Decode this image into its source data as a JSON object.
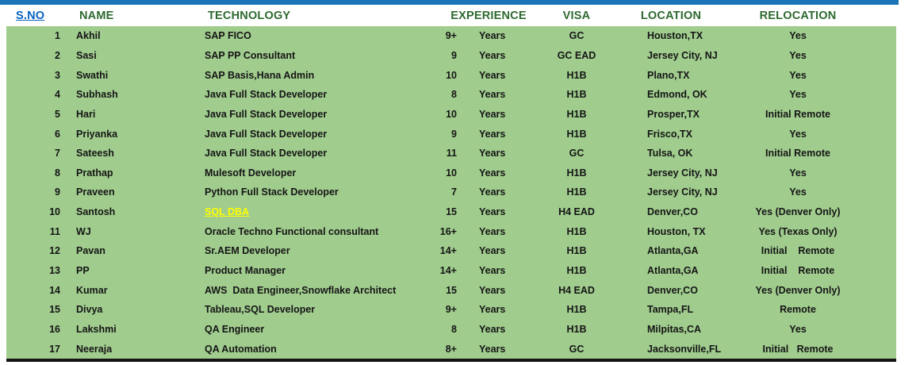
{
  "colors": {
    "top_bar_blue": "#1b74b8",
    "header_text_green": "#2e6a30",
    "body_green": "#a0cc8e",
    "hyperlink_blue": "#0563c1",
    "highlight_yellow": "#ffff00",
    "body_text": "#151515"
  },
  "table": {
    "headers": {
      "sno": "S.NO",
      "name": "NAME",
      "technology": "TECHNOLOGY",
      "experience": "EXPERIENCE",
      "visa": "VISA",
      "location": "LOCATION",
      "relocation": "RELOCATION"
    },
    "rows": [
      {
        "sno": "1",
        "name": "Akhil",
        "technology": "SAP FICO",
        "experience_num": "9+",
        "experience_unit": "Years",
        "visa": "GC",
        "location": "Houston,TX",
        "relocation": "Yes",
        "technology_link": false
      },
      {
        "sno": "2",
        "name": "Sasi",
        "technology": "SAP PP Consultant",
        "experience_num": "9",
        "experience_unit": "Years",
        "visa": "GC EAD",
        "location": "Jersey City, NJ",
        "relocation": "Yes",
        "technology_link": false
      },
      {
        "sno": "3",
        "name": "Swathi",
        "technology": "SAP Basis,Hana Admin",
        "experience_num": "10",
        "experience_unit": "Years",
        "visa": "H1B",
        "location": "Plano,TX",
        "relocation": "Yes",
        "technology_link": false
      },
      {
        "sno": "4",
        "name": "Subhash",
        "technology": "Java Full Stack Developer",
        "experience_num": "8",
        "experience_unit": "Years",
        "visa": "H1B",
        "location": "Edmond, OK",
        "relocation": "Yes",
        "technology_link": false
      },
      {
        "sno": "5",
        "name": "Hari",
        "technology": "Java Full Stack Developer",
        "experience_num": "10",
        "experience_unit": "Years",
        "visa": "H1B",
        "location": "Prosper,TX",
        "relocation": "Initial Remote",
        "technology_link": false
      },
      {
        "sno": "6",
        "name": "Priyanka",
        "technology": "Java Full Stack Developer",
        "experience_num": "9",
        "experience_unit": "Years",
        "visa": "H1B",
        "location": "Frisco,TX",
        "relocation": "Yes",
        "technology_link": false
      },
      {
        "sno": "7",
        "name": "Sateesh",
        "technology": "Java Full Stack Developer",
        "experience_num": "11",
        "experience_unit": "Years",
        "visa": "GC",
        "location": "Tulsa, OK",
        "relocation": "Initial Remote",
        "technology_link": false
      },
      {
        "sno": "8",
        "name": "Prathap",
        "technology": "Mulesoft Developer",
        "experience_num": "10",
        "experience_unit": "Years",
        "visa": "H1B",
        "location": "Jersey City, NJ",
        "relocation": "Yes",
        "technology_link": false
      },
      {
        "sno": "9",
        "name": "Praveen",
        "technology": "Python Full Stack Developer",
        "experience_num": "7",
        "experience_unit": "Years",
        "visa": "H1B",
        "location": "Jersey City, NJ",
        "relocation": "Yes",
        "technology_link": false
      },
      {
        "sno": "10",
        "name": "Santosh",
        "technology": "SQL DBA",
        "experience_num": "15",
        "experience_unit": "Years",
        "visa": "H4 EAD",
        "location": "Denver,CO",
        "relocation": "Yes (Denver Only)",
        "technology_link": true
      },
      {
        "sno": "11",
        "name": "WJ",
        "technology": "Oracle Techno Functional consultant",
        "experience_num": "16+",
        "experience_unit": "Years",
        "visa": "H1B",
        "location": "Houston, TX",
        "relocation": "Yes (Texas Only)",
        "technology_link": false
      },
      {
        "sno": "12",
        "name": "Pavan",
        "technology": "Sr.AEM Developer",
        "experience_num": "14+",
        "experience_unit": "Years",
        "visa": "H1B",
        "location": "Atlanta,GA",
        "relocation": "Initial    Remote",
        "technology_link": false
      },
      {
        "sno": "13",
        "name": "PP",
        "technology": "Product Manager",
        "experience_num": "14+",
        "experience_unit": "Years",
        "visa": "H1B",
        "location": "Atlanta,GA",
        "relocation": "Initial    Remote",
        "technology_link": false
      },
      {
        "sno": "14",
        "name": "Kumar",
        "technology": "AWS  Data Engineer,Snowflake Architect",
        "experience_num": "15",
        "experience_unit": "Years",
        "visa": "H4 EAD",
        "location": "Denver,CO",
        "relocation": "Yes (Denver Only)",
        "technology_link": false
      },
      {
        "sno": "15",
        "name": "Divya",
        "technology": "Tableau,SQL Developer",
        "experience_num": "9+",
        "experience_unit": "Years",
        "visa": "H1B",
        "location": "Tampa,FL",
        "relocation": "Remote",
        "technology_link": false
      },
      {
        "sno": "16",
        "name": "Lakshmi",
        "technology": "QA Engineer",
        "experience_num": "8",
        "experience_unit": "Years",
        "visa": "H1B",
        "location": "Milpitas,CA",
        "relocation": "Yes",
        "technology_link": false
      },
      {
        "sno": "17",
        "name": "Neeraja",
        "technology": "QA Automation",
        "experience_num": "8+",
        "experience_unit": "Years",
        "visa": "GC",
        "location": "Jacksonville,FL",
        "relocation": "Initial   Remote",
        "technology_link": false
      }
    ]
  }
}
